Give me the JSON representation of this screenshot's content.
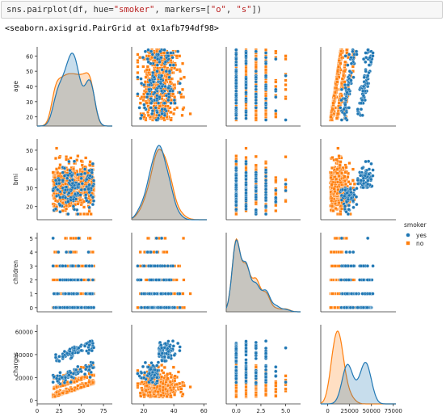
{
  "code_cell": {
    "prefix": "sns.pairplot(df, hue=",
    "hue_str": "\"smoker\"",
    "middle": ", markers=[",
    "m1": "\"o\"",
    "sep": ", ",
    "m2": "\"s\"",
    "suffix": "])"
  },
  "output_text": "<seaborn.axisgrid.PairGrid at 0x1afb794df98>",
  "colors": {
    "yes": "#1f77b4",
    "no": "#ff7f0e",
    "axis": "#333333"
  },
  "chart_data": {
    "type": "pairplot",
    "variables": [
      "age",
      "bmi",
      "children",
      "charges"
    ],
    "legend": {
      "title": "smoker",
      "entries": [
        "yes",
        "no"
      ],
      "placement": "right"
    },
    "ranges": {
      "age": [
        14,
        66
      ],
      "bmi": [
        13,
        56
      ],
      "children": [
        -0.3,
        5.4
      ],
      "charges": [
        -3000,
        66000
      ]
    },
    "y_ticks": {
      "age": [
        "20",
        "30",
        "40",
        "50",
        "60"
      ],
      "bmi": [
        "20",
        "30",
        "40",
        "50"
      ],
      "children": [
        "0",
        "1",
        "2",
        "3",
        "4",
        "5"
      ],
      "charges": [
        "0",
        "20000",
        "40000",
        "60000"
      ]
    },
    "x_ticks": {
      "age": [
        "0",
        "25",
        "50",
        "75"
      ],
      "bmi": [
        "20",
        "40",
        "60"
      ],
      "children": [
        "0.0",
        "2.5",
        "5.0"
      ],
      "charges": [
        "0",
        "25000",
        "50000",
        "75000"
      ]
    },
    "x_ranges": {
      "age": [
        0,
        85
      ],
      "bmi": [
        12,
        62
      ],
      "children": [
        -1,
        6.5
      ],
      "charges": [
        -8000,
        78000
      ]
    }
  }
}
